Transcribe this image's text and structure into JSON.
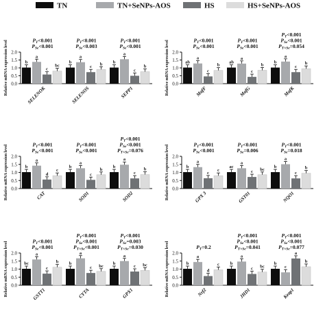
{
  "legend": [
    {
      "name": "TN",
      "color": "#0d0d0d"
    },
    {
      "name": "TN+SeNPs-AOS",
      "color": "#a7a9ac"
    },
    {
      "name": "HS",
      "color": "#6f7275"
    },
    {
      "name": "HS+SeNPs-AOS",
      "color": "#dcdcdc"
    }
  ],
  "chart_data": [
    {
      "type": "bar",
      "ylabel": "Relative mRNA expression level",
      "ylim": [
        0,
        2.0
      ],
      "yticks": [
        "0.0",
        "0.5",
        "1.0",
        "1.5",
        "2.0"
      ],
      "categories": [
        "SELENOK",
        "SELENOS",
        "SEPP1"
      ],
      "series": [
        {
          "name": "TN",
          "values": [
            1.02,
            1.02,
            1.02
          ]
        },
        {
          "name": "TN+SeNPs-AOS",
          "values": [
            1.38,
            1.36,
            1.55
          ]
        },
        {
          "name": "HS",
          "values": [
            0.58,
            0.73,
            0.5
          ]
        },
        {
          "name": "HS+SeNPs-AOS",
          "values": [
            0.8,
            0.9,
            0.76
          ]
        }
      ],
      "letters": [
        [
          "b",
          "a",
          "c",
          "bc"
        ],
        [
          "b",
          "a",
          "c",
          "b"
        ],
        [
          "b",
          "a",
          "c",
          "b"
        ]
      ],
      "pvalues": [
        [
          "PT<0.001",
          "PSe<0.001"
        ],
        [
          "PT<0.001",
          "PSe<0.003"
        ],
        [
          "PT<0.001",
          "PSe<0.001"
        ]
      ]
    },
    {
      "type": "bar",
      "ylabel": "Relative mRNA expression level",
      "ylim": [
        0,
        2.0
      ],
      "yticks": [
        "0.0",
        "0.5",
        "1.0",
        "1.5",
        "2.0"
      ],
      "categories": [
        "MafF",
        "MafG",
        "MafK"
      ],
      "series": [
        {
          "name": "TN",
          "values": [
            1.02,
            1.02,
            1.02
          ]
        },
        {
          "name": "TN+SeNPs-AOS",
          "values": [
            1.28,
            1.27,
            1.4
          ]
        },
        {
          "name": "HS",
          "values": [
            0.46,
            0.43,
            0.73
          ]
        },
        {
          "name": "HS+SeNPs-AOS",
          "values": [
            0.84,
            0.85,
            0.95
          ]
        }
      ],
      "letters": [
        [
          "ab",
          "a",
          "c",
          "b"
        ],
        [
          "ab",
          "a",
          "c",
          "b"
        ],
        [
          "b",
          "a",
          "c",
          "b"
        ]
      ],
      "pvalues": [
        [
          "PT<0.001",
          "PSe<0.001"
        ],
        [
          "PT<0.001",
          "PSe<0.001"
        ],
        [
          "PT<0.001",
          "PSe<0.001",
          "PT×Se=0.054"
        ]
      ]
    },
    {
      "type": "bar",
      "ylabel": "Relative mRNA expression level",
      "ylim": [
        0,
        2.0
      ],
      "yticks": [
        "0.0",
        "0.5",
        "1.0",
        "1.5",
        "2.0"
      ],
      "categories": [
        "CAT",
        "SOD1",
        "SOD2"
      ],
      "series": [
        {
          "name": "TN",
          "values": [
            1.02,
            1.02,
            1.02
          ]
        },
        {
          "name": "TN+SeNPs-AOS",
          "values": [
            1.42,
            1.26,
            1.48
          ]
        },
        {
          "name": "HS",
          "values": [
            0.56,
            0.54,
            0.63
          ]
        },
        {
          "name": "HS+SeNPs-AOS",
          "values": [
            0.8,
            0.86,
            0.87
          ]
        }
      ],
      "letters": [
        [
          "b",
          "a",
          "d",
          "c"
        ],
        [
          "b",
          "a",
          "c",
          "b"
        ],
        [
          "b",
          "a",
          "c",
          "b"
        ]
      ],
      "pvalues": [
        [
          "PT<0.001",
          "PSe<0.001"
        ],
        [
          "PT<0.001",
          "PSe<0.001"
        ],
        [
          "PT<0.001",
          "PSe<0.001",
          "PT×Se=0.076"
        ]
      ]
    },
    {
      "type": "bar",
      "ylabel": "Relative mRNA expression level",
      "ylim": [
        0,
        2.0
      ],
      "yticks": [
        "0.0",
        "0.5",
        "1.0",
        "1.5",
        "2.0"
      ],
      "categories": [
        "GPX 3",
        "GST01",
        "NQO1"
      ],
      "series": [
        {
          "name": "TN",
          "values": [
            1.02,
            1.02,
            1.02
          ]
        },
        {
          "name": "TN+SeNPs-AOS",
          "values": [
            1.33,
            1.26,
            1.51
          ]
        },
        {
          "name": "HS",
          "values": [
            0.64,
            0.72,
            0.63
          ]
        },
        {
          "name": "HS+SeNPs-AOS",
          "values": [
            0.8,
            0.86,
            0.95
          ]
        }
      ],
      "letters": [
        [
          "b",
          "a",
          "c",
          "c"
        ],
        [
          "ac",
          "a",
          "c",
          "bc"
        ],
        [
          "b",
          "a",
          "c",
          "b"
        ]
      ],
      "pvalues": [
        [
          "PT<0.001",
          "PSe<0.001"
        ],
        [
          "PT<0.001",
          "PSe=0.006"
        ],
        [
          "PT<0.001",
          "PSe=0.018"
        ]
      ]
    },
    {
      "type": "bar",
      "ylabel": "Relative mRNA expression level",
      "ylim": [
        0,
        2.0
      ],
      "yticks": [
        "0.0",
        "0.5",
        "1.0",
        "1.5",
        "2.0"
      ],
      "categories": [
        "GSTT1",
        "CYTA",
        "GPX1"
      ],
      "series": [
        {
          "name": "TN",
          "values": [
            1.02,
            1.02,
            1.02
          ]
        },
        {
          "name": "TN+SeNPs-AOS",
          "values": [
            1.6,
            1.67,
            1.5
          ]
        },
        {
          "name": "HS",
          "values": [
            0.72,
            0.76,
            0.85
          ]
        },
        {
          "name": "HS+SeNPs-AOS",
          "values": [
            1.12,
            0.86,
            0.92
          ]
        }
      ],
      "letters": [
        [
          "bc",
          "a",
          "c",
          "b"
        ],
        [
          "b",
          "a",
          "c",
          "bc"
        ],
        [
          "b",
          "a",
          "c",
          "bc"
        ]
      ],
      "pvalues": [
        [
          "PT<0.001",
          "PSe<0.001"
        ],
        [
          "PT<0.001",
          "PSe<0.001",
          "PT×Se<0.001"
        ],
        [
          "PT<0.001",
          "PSe=0.003",
          "PT×Se=0.030"
        ]
      ]
    },
    {
      "type": "bar",
      "ylabel": "Relative mRNA expression level",
      "ylim": [
        0,
        2.0
      ],
      "yticks": [
        "0.0",
        "0.5",
        "1.0",
        "1.5",
        "2.0"
      ],
      "categories": [
        "Nrf2",
        "JHD1",
        "Keap1"
      ],
      "series": [
        {
          "name": "TN",
          "values": [
            1.02,
            1.02,
            1.02
          ]
        },
        {
          "name": "TN+SeNPs-AOS",
          "values": [
            1.44,
            1.47,
            0.8
          ]
        },
        {
          "name": "HS",
          "values": [
            0.57,
            0.7,
            1.66
          ]
        },
        {
          "name": "HS+SeNPs-AOS",
          "values": [
            0.96,
            0.82,
            1.15
          ]
        }
      ],
      "letters": [
        [
          "b",
          "a",
          "d",
          "c"
        ],
        [
          "b",
          "a",
          "c",
          "bc"
        ],
        [
          "b",
          "c",
          "a",
          "b"
        ]
      ],
      "pvalues": [
        [
          "PT=0.2"
        ],
        [
          "PT<0.001",
          "PSe<0.001",
          "PT×Se=0.041"
        ],
        [
          "PT<0.001",
          "PSe<0.001",
          "PT×Se=0.077"
        ]
      ]
    }
  ]
}
